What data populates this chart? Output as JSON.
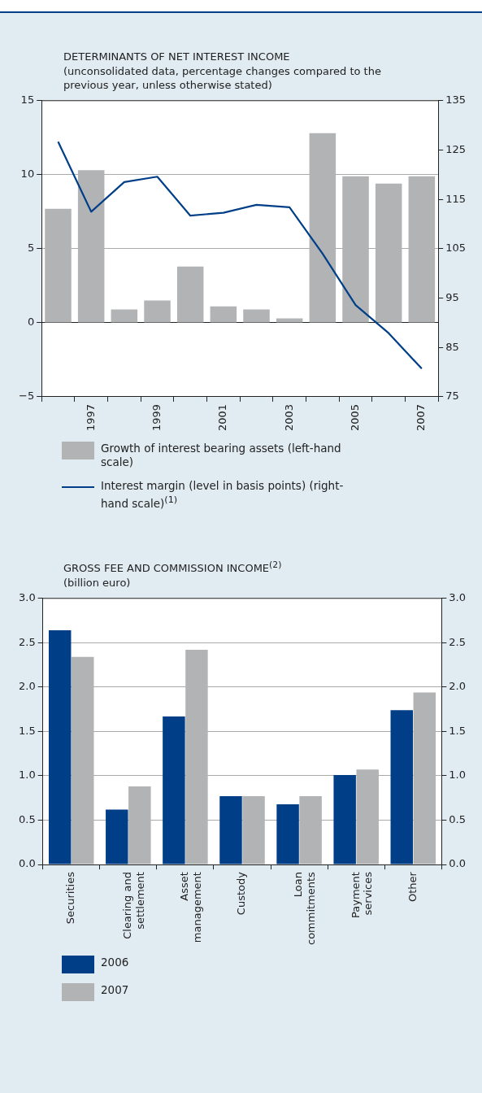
{
  "chart_data": [
    {
      "type": "bar",
      "title": "DETERMINANTS OF NET INTEREST INCOME",
      "subtitle": "(unconsolidated data, percentage changes compared to the previous year, unless otherwise stated)",
      "categories": [
        null,
        "1997",
        null,
        "1999",
        null,
        "2001",
        null,
        "2003",
        null,
        "2005",
        null,
        "2007"
      ],
      "series": [
        {
          "name": "Growth of interest bearing assets (left-hand scale)",
          "type": "bar",
          "color": "#b2b3b5",
          "values": [
            7.7,
            10.3,
            0.9,
            1.5,
            3.8,
            1.1,
            0.9,
            0.3,
            12.8,
            9.9,
            9.4,
            9.9
          ]
        },
        {
          "name": "Interest margin (level in basis points) (right-hand scale)$^{(1)}$",
          "type": "line",
          "axis": "y2",
          "color": "#003f87",
          "marker": "none",
          "values": [
            126.7,
            112.5,
            118.5,
            119.6,
            111.7,
            112.3,
            113.9,
            113.4,
            104,
            93.6,
            87.9,
            80.7
          ]
        }
      ],
      "ylim": [
        -5,
        15
      ],
      "yticks": [
        -5,
        0,
        5,
        10,
        15
      ],
      "y2lim": [
        75,
        135
      ],
      "y2ticks": [
        75,
        85,
        95,
        105,
        115,
        125,
        135
      ],
      "grid": "y",
      "legend": "bottom"
    },
    {
      "type": "bar",
      "title": "GROSS FEE AND COMMISSION INCOME$^{(2)}$",
      "subtitle": "(billion euro)",
      "categories": [
        "Securities",
        "Clearing and settlement",
        "Asset management",
        "Custody",
        "Loan commitments",
        "Payment services",
        "Other"
      ],
      "series": [
        {
          "name": "2006",
          "color": "#003f87",
          "values": [
            2.64,
            0.62,
            1.67,
            0.77,
            0.68,
            1.01,
            1.74
          ]
        },
        {
          "name": "2007",
          "color": "#b2b3b5",
          "values": [
            2.34,
            0.88,
            2.42,
            0.77,
            0.77,
            1.07,
            1.94
          ]
        }
      ],
      "ylim": [
        0,
        3
      ],
      "yticks": [
        {
          "value": 0,
          "label": "0.0"
        },
        0.5,
        {
          "value": 1,
          "label": "1.0"
        },
        1.5,
        {
          "value": 2,
          "label": "2.0"
        },
        2.5,
        {
          "value": 3,
          "label": "3.0"
        }
      ],
      "y2lim": [
        0,
        3
      ],
      "y2ticks": [
        {
          "value": 0,
          "label": "0.0"
        },
        0.5,
        {
          "value": 1,
          "label": "1.0"
        },
        1.5,
        {
          "value": 2,
          "label": "2.0"
        },
        2.5,
        {
          "value": 3,
          "label": "3.0"
        }
      ],
      "grid": "y",
      "legend": "bottom"
    }
  ]
}
